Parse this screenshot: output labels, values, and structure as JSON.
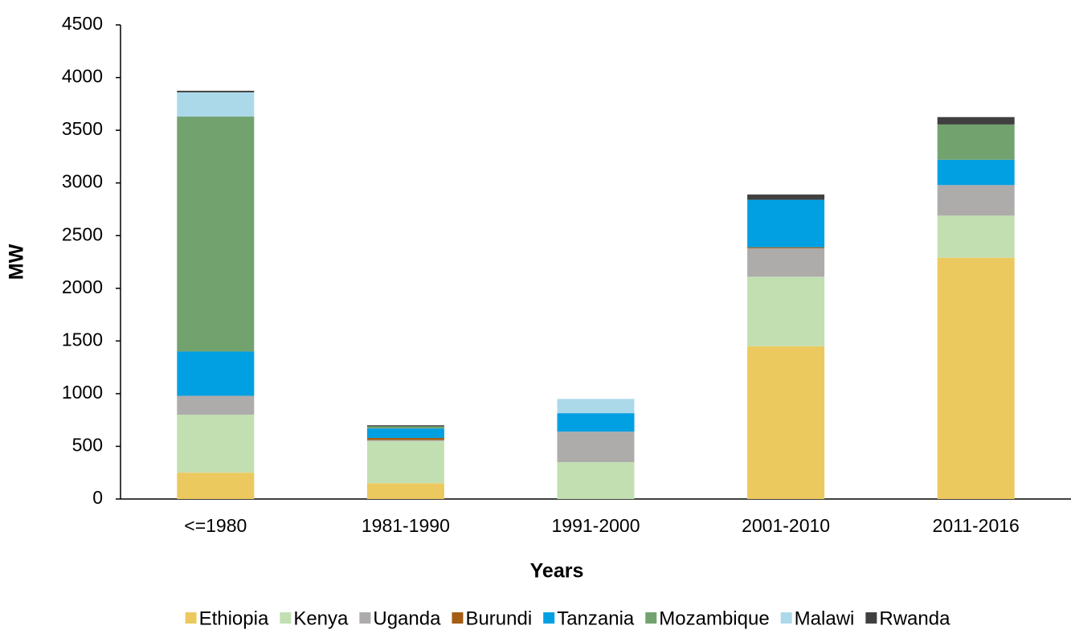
{
  "chart_data": {
    "type": "stacked_bar",
    "x_label": "Years",
    "y_label": "MW",
    "categories": [
      "<=1980",
      "1981-1990",
      "1991-2000",
      "2001-2010",
      "2011-2016"
    ],
    "series": [
      {
        "name": "Ethiopia",
        "color": "#ecc95e",
        "values": [
          250,
          150,
          0,
          1450,
          2290
        ]
      },
      {
        "name": "Kenya",
        "color": "#c2dfb2",
        "values": [
          550,
          400,
          350,
          660,
          400
        ]
      },
      {
        "name": "Uganda",
        "color": "#aeabab",
        "values": [
          180,
          10,
          290,
          270,
          290
        ]
      },
      {
        "name": "Burundi",
        "color": "#a55d14",
        "values": [
          0,
          20,
          0,
          10,
          0
        ]
      },
      {
        "name": "Tanzania",
        "color": "#00a0e3",
        "values": [
          420,
          90,
          175,
          450,
          240
        ]
      },
      {
        "name": "Mozambique",
        "color": "#72a36f",
        "values": [
          2230,
          20,
          0,
          0,
          335
        ]
      },
      {
        "name": "Malawi",
        "color": "#acd9ea",
        "values": [
          230,
          0,
          135,
          0,
          0
        ]
      },
      {
        "name": "Rwanda",
        "color": "#404040",
        "values": [
          15,
          10,
          0,
          50,
          70
        ]
      }
    ],
    "ylim": [
      0,
      4500
    ],
    "yticks": [
      0,
      500,
      1000,
      1500,
      2000,
      2500,
      3000,
      3500,
      4000,
      4500
    ],
    "legend": "bottom"
  }
}
